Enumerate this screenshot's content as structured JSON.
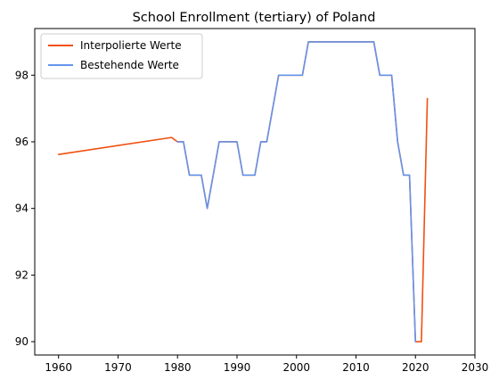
{
  "chart_data": {
    "type": "line",
    "title": "School Enrollment (tertiary) of Poland",
    "xlabel": "",
    "ylabel": "",
    "xlim": [
      1956,
      2030
    ],
    "ylim": [
      89.6,
      99.4
    ],
    "xticks": [
      1960,
      1970,
      1980,
      1990,
      2000,
      2010,
      2020,
      2030
    ],
    "yticks": [
      90,
      92,
      94,
      96,
      98
    ],
    "grid": false,
    "legend_position": "top-left",
    "series": [
      {
        "name": "Interpolierte Werte",
        "color": "#f0500f",
        "x": [
          1960,
          1979,
          1980,
          1981,
          1982,
          1983,
          1984,
          1985,
          1986,
          1987,
          1988,
          1989,
          1990,
          1991,
          1992,
          1993,
          1994,
          1995,
          1996,
          1997,
          1998,
          1999,
          2000,
          2001,
          2002,
          2003,
          2004,
          2005,
          2006,
          2007,
          2008,
          2009,
          2010,
          2011,
          2012,
          2013,
          2014,
          2015,
          2016,
          2017,
          2018,
          2019,
          2020,
          2021,
          2022
        ],
        "y": [
          95.62,
          96.13,
          96.0,
          96.0,
          95.0,
          95.0,
          95.0,
          94.0,
          95.0,
          96.0,
          96.0,
          96.0,
          96.0,
          95.0,
          95.0,
          95.0,
          96.0,
          96.0,
          97.0,
          98.0,
          98.0,
          98.0,
          98.0,
          98.0,
          99.0,
          99.0,
          99.0,
          99.0,
          99.0,
          99.0,
          99.0,
          99.0,
          99.0,
          99.0,
          99.0,
          99.0,
          98.0,
          98.0,
          98.0,
          96.0,
          95.0,
          95.0,
          90.0,
          90.0,
          97.3
        ]
      },
      {
        "name": "Bestehende Werte",
        "color": "#6495ed",
        "x": [
          1980,
          1981,
          1982,
          1983,
          1984,
          1985,
          1986,
          1987,
          1988,
          1989,
          1990,
          1991,
          1992,
          1993,
          1994,
          1995,
          1996,
          1997,
          1998,
          1999,
          2000,
          2001,
          2002,
          2003,
          2004,
          2005,
          2006,
          2007,
          2008,
          2009,
          2010,
          2011,
          2012,
          2013,
          2014,
          2015,
          2016,
          2017,
          2018,
          2019,
          2020
        ],
        "y": [
          96.0,
          96.0,
          95.0,
          95.0,
          95.0,
          94.0,
          95.0,
          96.0,
          96.0,
          96.0,
          96.0,
          95.0,
          95.0,
          95.0,
          96.0,
          96.0,
          97.0,
          98.0,
          98.0,
          98.0,
          98.0,
          98.0,
          99.0,
          99.0,
          99.0,
          99.0,
          99.0,
          99.0,
          99.0,
          99.0,
          99.0,
          99.0,
          99.0,
          99.0,
          98.0,
          98.0,
          98.0,
          96.0,
          95.0,
          95.0,
          90.0
        ]
      }
    ]
  }
}
